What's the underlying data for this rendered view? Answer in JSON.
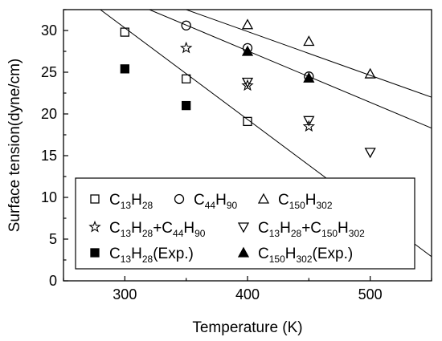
{
  "chart_data": {
    "type": "scatter",
    "xlabel": "Temperature (K)",
    "ylabel": "Surface tension(dyne/cm)",
    "xlim": [
      250,
      550
    ],
    "ylim": [
      0,
      32.5
    ],
    "xticks": [
      300,
      400,
      500
    ],
    "yticks": [
      0,
      5,
      10,
      15,
      20,
      25,
      30
    ],
    "grid": false,
    "legend_position": "bottom-left (inside plot area)",
    "series": [
      {
        "name": "C13H28",
        "marker": "open-square",
        "fit_line": true,
        "points": [
          [
            300,
            29.8
          ],
          [
            350,
            24.2
          ],
          [
            400,
            19.1
          ]
        ]
      },
      {
        "name": "C44H90",
        "marker": "open-circle",
        "fit_line": true,
        "points": [
          [
            350,
            30.6
          ],
          [
            400,
            27.9
          ],
          [
            450,
            24.5
          ]
        ]
      },
      {
        "name": "C150H302",
        "marker": "open-triangle-up",
        "fit_line": true,
        "points": [
          [
            400,
            30.7
          ],
          [
            450,
            28.7
          ],
          [
            500,
            24.8
          ]
        ]
      },
      {
        "name": "C13H28+C44H90",
        "marker": "open-star",
        "fit_line": false,
        "points": [
          [
            350,
            27.9
          ],
          [
            400,
            23.4
          ],
          [
            450,
            18.5
          ]
        ]
      },
      {
        "name": "C13H28+C150H302",
        "marker": "open-triangle-down",
        "fit_line": false,
        "points": [
          [
            400,
            23.8
          ],
          [
            450,
            19.2
          ],
          [
            500,
            15.4
          ]
        ]
      },
      {
        "name": "C13H28(Exp.)",
        "marker": "filled-square",
        "fit_line": false,
        "points": [
          [
            300,
            25.4
          ],
          [
            350,
            21.0
          ]
        ]
      },
      {
        "name": "C150H302(Exp.)",
        "marker": "filled-triangle-up",
        "fit_line": false,
        "points": [
          [
            400,
            27.5
          ],
          [
            450,
            24.3
          ]
        ]
      }
    ],
    "fit_lines": [
      {
        "series": "C13H28",
        "from": [
          280,
          32.5
        ],
        "to": [
          550,
          2.9
        ]
      },
      {
        "series": "C44H90",
        "from": [
          320,
          32.5
        ],
        "to": [
          550,
          18.3
        ]
      },
      {
        "series": "C150H302",
        "from": [
          350,
          32.5
        ],
        "to": [
          550,
          22.0
        ]
      }
    ],
    "legend": [
      {
        "series": "C13H28",
        "parts": [
          [
            "C",
            "n"
          ],
          [
            "13",
            "s"
          ],
          [
            "H",
            "n"
          ],
          [
            "28",
            "s"
          ]
        ]
      },
      {
        "series": "C44H90",
        "parts": [
          [
            "C",
            "n"
          ],
          [
            "44",
            "s"
          ],
          [
            "H",
            "n"
          ],
          [
            "90",
            "s"
          ]
        ]
      },
      {
        "series": "C150H302",
        "parts": [
          [
            "C",
            "n"
          ],
          [
            "150",
            "s"
          ],
          [
            "H",
            "n"
          ],
          [
            "302",
            "s"
          ]
        ]
      },
      {
        "series": "C13H28+C44H90",
        "parts": [
          [
            "C",
            "n"
          ],
          [
            "13",
            "s"
          ],
          [
            "H",
            "n"
          ],
          [
            "28",
            "s"
          ],
          [
            "+C",
            "n"
          ],
          [
            "44",
            "s"
          ],
          [
            "H",
            "n"
          ],
          [
            "90",
            "s"
          ]
        ]
      },
      {
        "series": "C13H28+C150H302",
        "parts": [
          [
            "C",
            "n"
          ],
          [
            "13",
            "s"
          ],
          [
            "H",
            "n"
          ],
          [
            "28",
            "s"
          ],
          [
            "+C",
            "n"
          ],
          [
            "150",
            "s"
          ],
          [
            "H",
            "n"
          ],
          [
            "302",
            "s"
          ]
        ]
      },
      {
        "series": "C13H28(Exp.)",
        "parts": [
          [
            "C",
            "n"
          ],
          [
            "13",
            "s"
          ],
          [
            "H",
            "n"
          ],
          [
            "28",
            "s"
          ],
          [
            "(Exp.)",
            "n"
          ]
        ]
      },
      {
        "series": "C150H302(Exp.)",
        "parts": [
          [
            "C",
            "n"
          ],
          [
            "150",
            "s"
          ],
          [
            "H",
            "n"
          ],
          [
            "302",
            "s"
          ],
          [
            "(Exp.)",
            "n"
          ]
        ]
      }
    ]
  }
}
